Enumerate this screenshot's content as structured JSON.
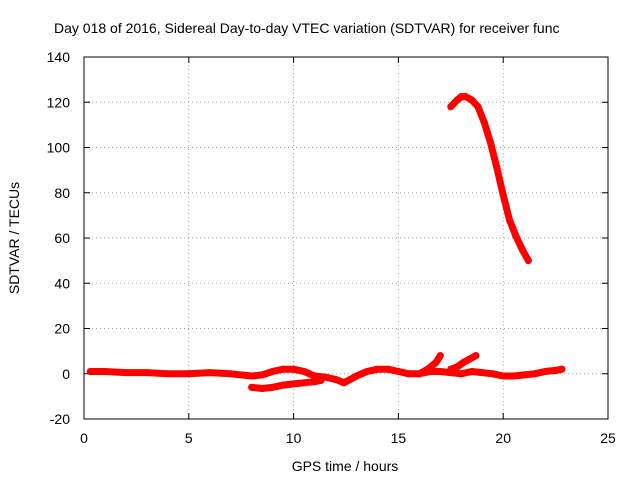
{
  "chart_data": {
    "type": "scatter",
    "title": "Day 018 of 2016, Sidereal Day-to-day VTEC variation (SDTVAR) for receiver func",
    "xlabel": "GPS time / hours",
    "ylabel": "SDTVAR / TECUs",
    "xlim": [
      0,
      25
    ],
    "ylim": [
      -20,
      140
    ],
    "xticks": [
      0,
      5,
      10,
      15,
      20,
      25
    ],
    "yticks": [
      -20,
      0,
      20,
      40,
      60,
      80,
      100,
      120,
      140
    ],
    "grid": true,
    "legend": "none",
    "series": [
      {
        "color": "#ff0000",
        "x": [
          17.5,
          17.8,
          18.0,
          18.2,
          18.5,
          18.8,
          19.1,
          19.4,
          19.7,
          20.0,
          20.3,
          20.6,
          20.9,
          21.2
        ],
        "y": [
          118,
          121,
          122.5,
          122.5,
          121,
          118,
          111,
          102,
          91,
          79,
          68,
          61,
          55,
          50
        ]
      },
      {
        "color": "#ff0000",
        "x": [
          0.3,
          1,
          2,
          3,
          4,
          5,
          6,
          7,
          8,
          8.5,
          9,
          9.5,
          10,
          10.5,
          11,
          11.5,
          12,
          12.4,
          13,
          13.5,
          14,
          14.5,
          15,
          15.5,
          16,
          16.5,
          17,
          17.5,
          18,
          18.5,
          19,
          19.5,
          20,
          20.5,
          21,
          21.5,
          22,
          22.5,
          22.8
        ],
        "y": [
          1,
          1,
          0.5,
          0.5,
          0,
          0,
          0.5,
          0,
          -1,
          -0.5,
          1,
          2,
          2,
          1,
          -1,
          -1.5,
          -2.5,
          -4,
          -1,
          1,
          2,
          2,
          1,
          0,
          0,
          1,
          1,
          0.5,
          0,
          1,
          0.5,
          0,
          -1,
          -1,
          -0.5,
          0,
          1,
          1.5,
          2
        ]
      },
      {
        "color": "#ff0000",
        "x": [
          8,
          8.5,
          9,
          9.5,
          10,
          10.5,
          11,
          11.3
        ],
        "y": [
          -6,
          -6.5,
          -6,
          -5,
          -4.5,
          -4,
          -3.5,
          -3
        ]
      },
      {
        "color": "#ff0000",
        "x": [
          16,
          16.4,
          16.8,
          17.0
        ],
        "y": [
          0,
          2,
          5,
          8
        ]
      },
      {
        "color": "#ff0000",
        "x": [
          17.5,
          17.8,
          18.1,
          18.4,
          18.7
        ],
        "y": [
          2,
          3,
          5,
          6.5,
          8
        ]
      }
    ]
  }
}
